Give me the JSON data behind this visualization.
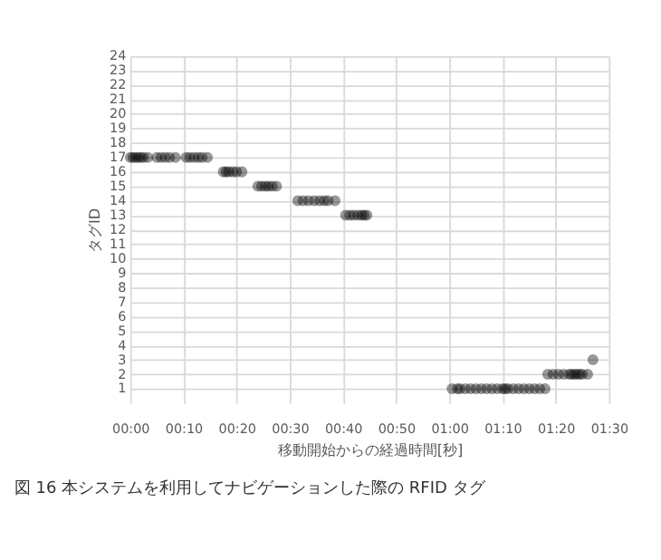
{
  "chart_data": {
    "type": "scatter",
    "xlabel": "移動開始からの経過時間[秒]",
    "ylabel": "タグID",
    "annotations": [
      "図 16 本システムを利用してナビゲーションした際の RFID タグ"
    ],
    "series": [
      {
        "color": "#000000",
        "x": [
          0,
          0.5,
          1,
          1.5,
          2,
          2.5,
          3.3,
          5,
          5.8,
          6.6,
          7.4,
          8.5,
          10.5,
          11.2,
          12,
          12.8,
          13.5,
          14.5,
          17.5,
          18,
          18.5,
          19.3,
          20,
          21,
          24,
          24.7,
          25.4,
          26,
          26.7,
          27.5,
          31.5,
          32.5,
          33.5,
          34.6,
          35.6,
          36.5,
          37.2,
          38.5,
          40.5,
          41.3,
          42,
          42.8,
          43.5,
          44,
          44.5,
          60.5,
          61.5,
          62,
          63,
          64,
          65,
          66,
          67,
          68,
          69,
          70,
          70.5,
          71,
          72,
          73,
          74,
          75,
          76,
          77,
          78,
          78.5,
          79.5,
          80.5,
          81.5,
          82.5,
          83,
          83.5,
          84,
          84.5,
          85,
          86,
          87
        ],
        "values": [
          17,
          17,
          17,
          17,
          17,
          17,
          17,
          17,
          17,
          17,
          17,
          17,
          17,
          17,
          17,
          17,
          17,
          17,
          16,
          16,
          16,
          16,
          16,
          16,
          15,
          15,
          15,
          15,
          15,
          15,
          14,
          14,
          14,
          14,
          14,
          14,
          14,
          14,
          13,
          13,
          13,
          13,
          13,
          13,
          13,
          1,
          1,
          1,
          1,
          1,
          1,
          1,
          1,
          1,
          1,
          1,
          1,
          1,
          1,
          1,
          1,
          1,
          1,
          1,
          1,
          2,
          2,
          2,
          2,
          2,
          2,
          2,
          2,
          2,
          2,
          2,
          3
        ]
      }
    ],
    "xlim": [
      0,
      90
    ],
    "xticks": [
      {
        "value": 0,
        "label": "00:00"
      },
      {
        "value": 10,
        "label": "00:10"
      },
      {
        "value": 20,
        "label": "00:20"
      },
      {
        "value": 30,
        "label": "00:30"
      },
      {
        "value": 40,
        "label": "00:40"
      },
      {
        "value": 50,
        "label": "00:50"
      },
      {
        "value": 60,
        "label": "01:00"
      },
      {
        "value": 70,
        "label": "01:10"
      },
      {
        "value": 80,
        "label": "01:20"
      },
      {
        "value": 90,
        "label": "01:30"
      }
    ],
    "ylim": [
      0,
      24
    ],
    "yticks": [
      1,
      2,
      3,
      4,
      5,
      6,
      7,
      8,
      9,
      10,
      11,
      12,
      13,
      14,
      15,
      16,
      17,
      18,
      19,
      20,
      21,
      22,
      23,
      24
    ],
    "grid": true,
    "marker": "circle"
  }
}
